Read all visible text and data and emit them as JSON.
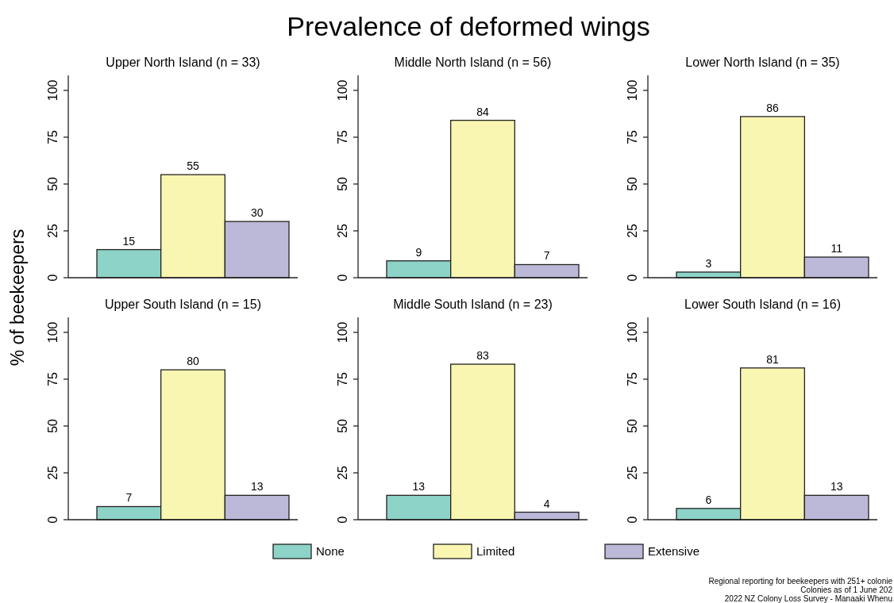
{
  "chart_data": [
    {
      "type": "bar",
      "title": "Upper North Island (n = 33)",
      "ylabel": "% of beekeepers",
      "categories": [
        null
      ],
      "series": [
        {
          "color": "#8dd3c7",
          "values": [
            15
          ]
        },
        {
          "color": "#f9f6b1",
          "values": [
            55
          ]
        },
        {
          "color": "#bcb8d8",
          "values": [
            30
          ]
        }
      ],
      "ylim": [
        0,
        108
      ],
      "yticks": [
        0,
        25,
        50,
        75,
        100
      ],
      "data_labels": true,
      "tick_labels": "y"
    },
    {
      "type": "bar",
      "title": "Middle North Island (n = 56)",
      "annotations": [
        "Prevalence of deformed wings"
      ],
      "categories": [
        null
      ],
      "series": [
        {
          "color": "#8dd3c7",
          "values": [
            9
          ]
        },
        {
          "color": "#f9f6b1",
          "values": [
            84
          ]
        },
        {
          "color": "#bcb8d8",
          "values": [
            7
          ]
        }
      ],
      "ylim": [
        0,
        108
      ],
      "yticks": [
        0,
        25,
        50,
        75,
        100
      ],
      "data_labels": true,
      "tick_labels": "y"
    },
    {
      "type": "bar",
      "title": "Lower North Island (n = 35)",
      "categories": [
        null
      ],
      "series": [
        {
          "color": "#8dd3c7",
          "values": [
            3
          ]
        },
        {
          "color": "#f9f6b1",
          "values": [
            86
          ]
        },
        {
          "color": "#bcb8d8",
          "values": [
            11
          ]
        }
      ],
      "ylim": [
        0,
        108
      ],
      "yticks": [
        0,
        25,
        50,
        75,
        100
      ],
      "data_labels": true,
      "tick_labels": "y"
    },
    {
      "type": "bar",
      "title": "Upper South Island (n = 15)",
      "categories": [
        null
      ],
      "series": [
        {
          "color": "#8dd3c7",
          "values": [
            7
          ]
        },
        {
          "color": "#f9f6b1",
          "values": [
            80
          ]
        },
        {
          "color": "#bcb8d8",
          "values": [
            13
          ]
        }
      ],
      "ylim": [
        0,
        108
      ],
      "yticks": [
        0,
        25,
        50,
        75,
        100
      ],
      "data_labels": true,
      "tick_labels": "y"
    },
    {
      "type": "bar",
      "title": "Middle South Island (n = 23)",
      "legend": "bottom",
      "categories": [
        null
      ],
      "series": [
        {
          "name": "None",
          "color": "#8dd3c7",
          "values": [
            13
          ]
        },
        {
          "name": "Limited",
          "color": "#f9f6b1",
          "values": [
            83
          ]
        },
        {
          "name": "Extensive",
          "color": "#bcb8d8",
          "values": [
            4
          ]
        }
      ],
      "ylim": [
        0,
        108
      ],
      "yticks": [
        0,
        25,
        50,
        75,
        100
      ],
      "data_labels": true,
      "tick_labels": "y"
    },
    {
      "type": "bar",
      "title": "Lower South Island (n = 16)",
      "annotations": [
        "Regional reporting for beekeepers with 251+ colonie",
        "Colonies as of 1 June 202",
        "2022 NZ Colony Loss Survey - Manaaki Whenu"
      ],
      "categories": [
        null
      ],
      "series": [
        {
          "color": "#8dd3c7",
          "values": [
            6
          ]
        },
        {
          "color": "#f9f6b1",
          "values": [
            81
          ]
        },
        {
          "color": "#bcb8d8",
          "values": [
            13
          ]
        }
      ],
      "ylim": [
        0,
        108
      ],
      "yticks": [
        0,
        25,
        50,
        75,
        100
      ],
      "data_labels": true,
      "tick_labels": "y"
    }
  ]
}
